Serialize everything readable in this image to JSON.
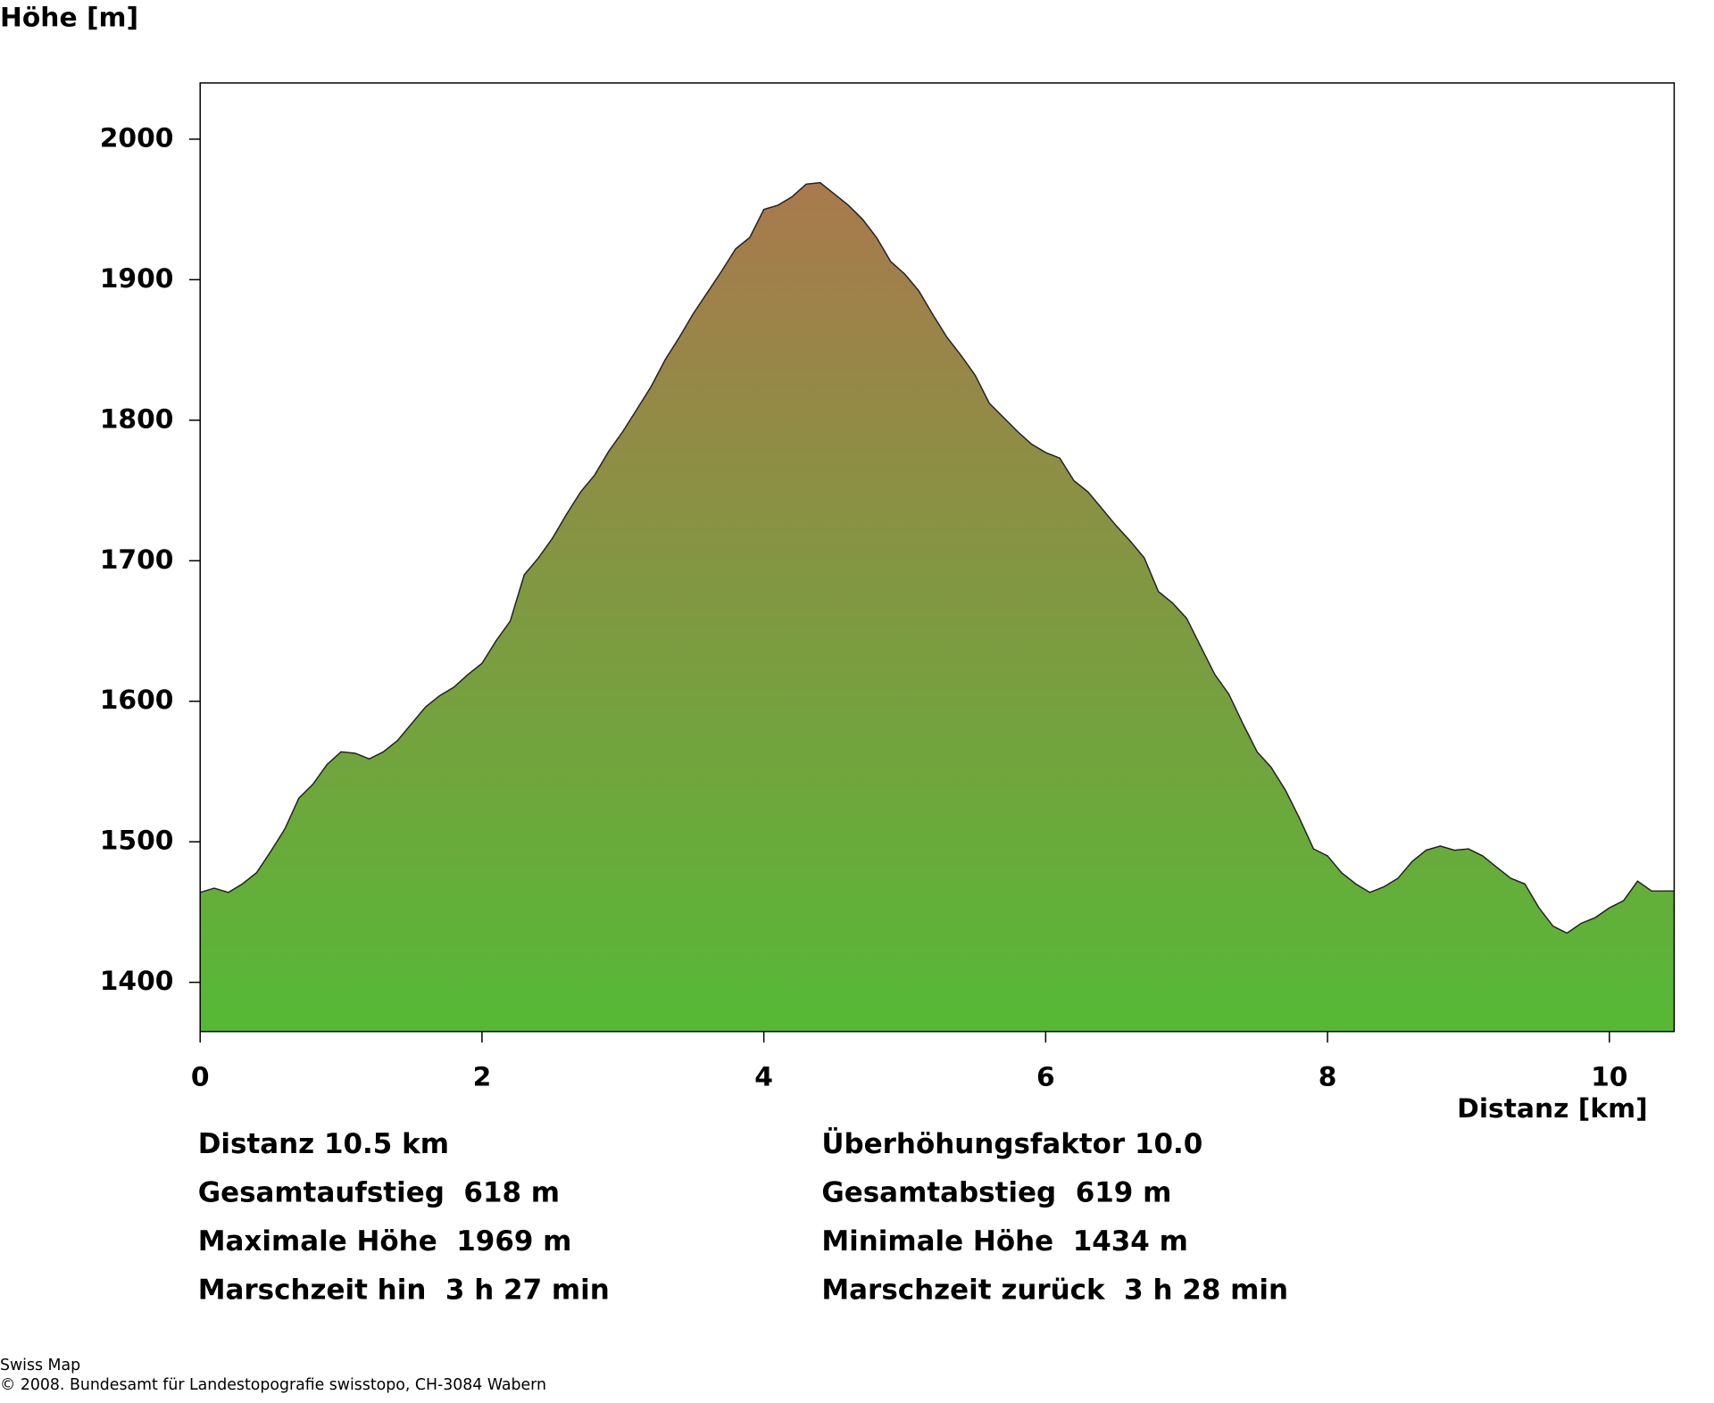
{
  "chart_data": {
    "type": "area",
    "y_label": "Höhe [m]",
    "x_label": "Distanz [km]",
    "x": [
      0,
      0.1,
      0.2,
      0.3,
      0.4,
      0.5,
      0.6,
      0.7,
      0.8,
      0.9,
      1.0,
      1.1,
      1.2,
      1.3,
      1.4,
      1.5,
      1.6,
      1.7,
      1.8,
      1.9,
      2.0,
      2.1,
      2.2,
      2.3,
      2.4,
      2.5,
      2.6,
      2.7,
      2.8,
      2.9,
      3.0,
      3.1,
      3.2,
      3.3,
      3.4,
      3.5,
      3.6,
      3.7,
      3.8,
      3.9,
      4.0,
      4.1,
      4.2,
      4.3,
      4.4,
      4.5,
      4.6,
      4.7,
      4.8,
      4.9,
      5.0,
      5.1,
      5.2,
      5.3,
      5.4,
      5.5,
      5.6,
      5.7,
      5.8,
      5.9,
      6.0,
      6.1,
      6.2,
      6.3,
      6.4,
      6.5,
      6.6,
      6.7,
      6.8,
      6.9,
      7.0,
      7.1,
      7.2,
      7.3,
      7.4,
      7.5,
      7.6,
      7.7,
      7.8,
      7.9,
      8.0,
      8.1,
      8.2,
      8.3,
      8.4,
      8.5,
      8.6,
      8.7,
      8.8,
      8.9,
      9.0,
      9.1,
      9.2,
      9.3,
      9.4,
      9.5,
      9.6,
      9.7,
      9.8,
      9.9,
      10.0,
      10.1,
      10.2,
      10.3,
      10.46
    ],
    "y": [
      1464,
      1467,
      1464,
      1470,
      1478,
      1493,
      1509,
      1531,
      1541,
      1555,
      1564,
      1563,
      1559,
      1564,
      1572,
      1584,
      1596,
      1604,
      1610,
      1619,
      1627,
      1643,
      1657,
      1690,
      1702,
      1716,
      1733,
      1749,
      1761,
      1778,
      1792,
      1808,
      1824,
      1843,
      1859,
      1876,
      1891,
      1906,
      1922,
      1930,
      1950,
      1953,
      1959,
      1968,
      1969,
      1961,
      1953,
      1943,
      1930,
      1913,
      1904,
      1892,
      1875,
      1859,
      1846,
      1832,
      1812,
      1802,
      1792,
      1783,
      1777,
      1773,
      1757,
      1749,
      1737,
      1725,
      1714,
      1702,
      1678,
      1670,
      1659,
      1639,
      1619,
      1605,
      1584,
      1564,
      1553,
      1537,
      1517,
      1495,
      1490,
      1478,
      1470,
      1464,
      1468,
      1474,
      1486,
      1494,
      1497,
      1494,
      1495,
      1490,
      1482,
      1474,
      1470,
      1453,
      1440,
      1435,
      1442,
      1446,
      1453,
      1458,
      1472,
      1465,
      1465
    ],
    "gradient": [
      "#a9794c",
      "#56b936"
    ],
    "xlim": [
      0,
      10.46
    ],
    "ylim": [
      1365,
      2040
    ],
    "xticks": [
      0,
      2,
      4,
      6,
      8,
      10
    ],
    "yticks": [
      1400,
      1500,
      1600,
      1700,
      1800,
      1900,
      2000
    ]
  },
  "stats": [
    [
      "Distanz 10.5 km",
      "Überhöhungsfaktor 10.0"
    ],
    [
      "Gesamtaufstieg  618 m",
      "Gesamtabstieg  619 m"
    ],
    [
      "Maximale Höhe  1969 m",
      "Minimale Höhe  1434 m"
    ],
    [
      "Marschzeit hin  3 h 27 min",
      "Marschzeit zurück  3 h 28 min"
    ]
  ],
  "footer": [
    "Swiss Map",
    "© 2008. Bundesamt für Landestopografie swisstopo, CH-3084 Wabern"
  ]
}
